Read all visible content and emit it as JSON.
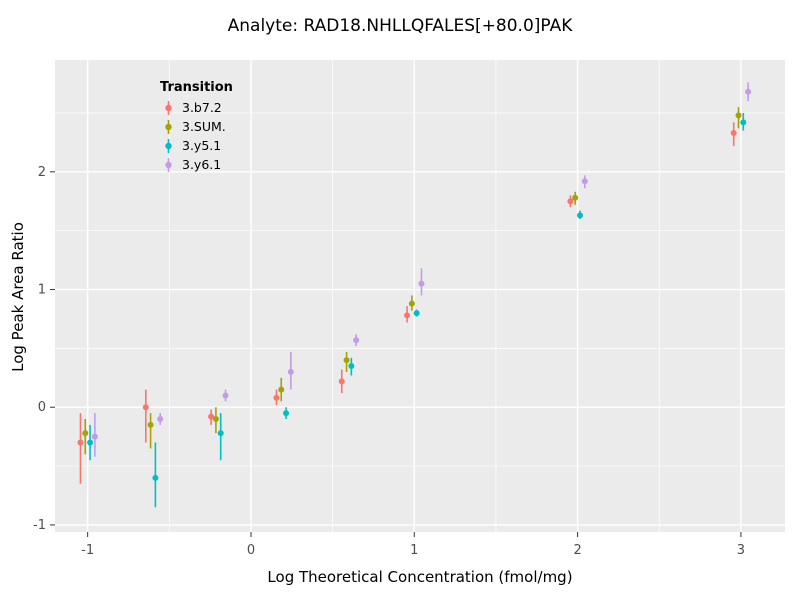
{
  "chart_data": {
    "type": "scatter",
    "title": "Analyte: RAD18.NHLLQFALES[+80.0]PAK",
    "xlabel": "Log Theoretical Concentration (fmol/mg)",
    "ylabel": "Log Peak Area Ratio",
    "legend_title": "Transition",
    "panel_bg": "#EBEBEB",
    "grid_color": "#FFFFFF",
    "xlim": [
      -1.2,
      3.27
    ],
    "ylim": [
      -1.06,
      2.95
    ],
    "x_ticks": [
      "-1",
      "0",
      "1",
      "2",
      "3"
    ],
    "x_tick_values": [
      -1,
      0,
      1,
      2,
      3
    ],
    "y_ticks": [
      "-1",
      "0",
      "1",
      "2"
    ],
    "y_tick_values": [
      -1,
      0,
      1,
      2
    ],
    "x_minor": [
      -0.5,
      0.5,
      1.5,
      2.5
    ],
    "y_minor": [
      -0.5,
      0.5,
      1.5,
      2.5
    ],
    "x": [
      -1,
      -0.6,
      -0.2,
      0.2,
      0.6,
      1,
      2,
      3
    ],
    "series": [
      {
        "name": "3.b7.2",
        "color": "#F8766D",
        "y": [
          -0.3,
          0.0,
          -0.08,
          0.08,
          0.22,
          0.78,
          1.75,
          2.33
        ],
        "ylo": [
          -0.65,
          -0.3,
          -0.15,
          0.02,
          0.12,
          0.72,
          1.7,
          2.22
        ],
        "yhi": [
          -0.05,
          0.15,
          -0.02,
          0.15,
          0.32,
          0.86,
          1.8,
          2.42
        ]
      },
      {
        "name": "3.SUM.",
        "color": "#A2A405",
        "y": [
          -0.22,
          -0.15,
          -0.1,
          0.15,
          0.4,
          0.88,
          1.78,
          2.48
        ],
        "ylo": [
          -0.4,
          -0.35,
          -0.22,
          0.05,
          0.3,
          0.82,
          1.72,
          2.37
        ],
        "yhi": [
          -0.1,
          -0.05,
          0.0,
          0.25,
          0.47,
          0.95,
          1.83,
          2.55
        ]
      },
      {
        "name": "3.y5.1",
        "color": "#00BFC4",
        "y": [
          -0.3,
          -0.6,
          -0.22,
          -0.05,
          0.35,
          0.8,
          1.63,
          2.42
        ],
        "ylo": [
          -0.45,
          -0.85,
          -0.45,
          -0.1,
          0.27,
          0.77,
          1.6,
          2.35
        ],
        "yhi": [
          -0.15,
          -0.3,
          -0.05,
          0.0,
          0.42,
          0.83,
          1.67,
          2.5
        ]
      },
      {
        "name": "3.y6.1",
        "color": "#C49BE8",
        "y": [
          -0.25,
          -0.1,
          0.1,
          0.3,
          0.57,
          1.05,
          1.92,
          2.68
        ],
        "ylo": [
          -0.42,
          -0.15,
          0.05,
          0.15,
          0.52,
          0.95,
          1.86,
          2.6
        ],
        "yhi": [
          -0.05,
          -0.05,
          0.15,
          0.47,
          0.62,
          1.18,
          1.97,
          2.76
        ]
      }
    ]
  }
}
